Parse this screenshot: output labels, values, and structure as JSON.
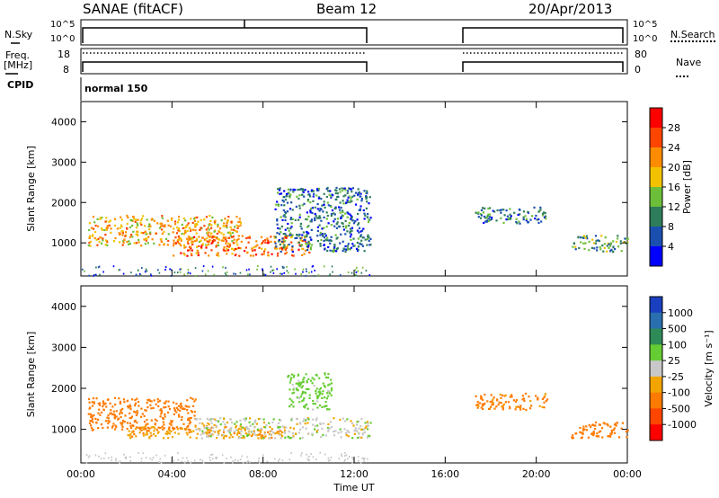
{
  "header": {
    "site": "SANAE (fitACF)",
    "beam": "Beam 12",
    "date": "20/Apr/2013"
  },
  "strip": {
    "nsky_label": "N.Sky",
    "nsearch_label": "N.Search",
    "nsky_ticks": [
      "10^5",
      "10^0"
    ],
    "freq_label_1": "Freq.",
    "freq_label_2": "[MHz]",
    "freq_ticks": [
      "18",
      "8"
    ],
    "nave_label": "Nave",
    "nave_ticks": [
      "80",
      "0"
    ],
    "cpid_label": "CPID",
    "cpid_value": "normal 150"
  },
  "chart_data": [
    {
      "type": "heatmap",
      "title": "",
      "xlabel": "Time UT",
      "ylabel": "Slant Range [km]",
      "xlim": [
        "00:00",
        "24:00"
      ],
      "x_ticks": [
        "00:00",
        "04:00",
        "08:00",
        "12:00",
        "16:00",
        "20:00",
        "00:00"
      ],
      "ylim": [
        180,
        4500
      ],
      "y_ticks": [
        1000,
        2000,
        3000,
        4000
      ],
      "colorbar": {
        "label": "Power [dB]",
        "ticks": [
          "4",
          "8",
          "12",
          "16",
          "20",
          "24",
          "28"
        ],
        "colors": [
          "#0000ff",
          "#1a4fb0",
          "#2e7d5a",
          "#6dbf3a",
          "#f2c200",
          "#ff8c00",
          "#ff4500",
          "#ff0000"
        ]
      },
      "echo_regions": [
        {
          "start_hour": 0.3,
          "end_hour": 7.0,
          "range_low_km": 950,
          "range_high_km": 1700,
          "level_db": 20
        },
        {
          "start_hour": 4.0,
          "end_hour": 10.0,
          "range_low_km": 700,
          "range_high_km": 1200,
          "level_db": 24
        },
        {
          "start_hour": 8.5,
          "end_hour": 12.7,
          "range_low_km": 800,
          "range_high_km": 2400,
          "level_db": 8
        },
        {
          "start_hour": 17.3,
          "end_hour": 20.5,
          "range_low_km": 1500,
          "range_high_km": 1900,
          "level_db": 8
        },
        {
          "start_hour": 21.5,
          "end_hour": 24.0,
          "range_low_km": 800,
          "range_high_km": 1200,
          "level_db": 12
        }
      ]
    },
    {
      "type": "heatmap",
      "title": "",
      "xlabel": "Time UT",
      "ylabel": "Slant Range [km]",
      "xlim": [
        "00:00",
        "24:00"
      ],
      "x_ticks": [
        "00:00",
        "04:00",
        "08:00",
        "12:00",
        "16:00",
        "20:00",
        "00:00"
      ],
      "ylim": [
        180,
        4500
      ],
      "y_ticks": [
        1000,
        2000,
        3000,
        4000
      ],
      "colorbar": {
        "label": "Velocity [m s⁻¹]",
        "ticks": [
          "1000",
          "500",
          "100",
          "25",
          "-25",
          "-100",
          "-500",
          "-1000"
        ],
        "colors": [
          "#1a3fbf",
          "#2a6fb0",
          "#2e8b57",
          "#66cc33",
          "#c8c8c8",
          "#f2a400",
          "#ff7a00",
          "#ff4500",
          "#ff0000"
        ]
      },
      "echo_regions": [
        {
          "start_hour": 0.3,
          "end_hour": 5.0,
          "range_low_km": 1000,
          "range_high_km": 1800,
          "velocity": -300
        },
        {
          "start_hour": 2.0,
          "end_hour": 9.0,
          "range_low_km": 800,
          "range_high_km": 1100,
          "velocity": -80
        },
        {
          "start_hour": 5.0,
          "end_hour": 12.7,
          "range_low_km": 800,
          "range_high_km": 1300,
          "velocity": 0
        },
        {
          "start_hour": 9.0,
          "end_hour": 11.0,
          "range_low_km": 1500,
          "range_high_km": 2400,
          "velocity": 60
        },
        {
          "start_hour": 17.3,
          "end_hour": 20.5,
          "range_low_km": 1500,
          "range_high_km": 1900,
          "velocity": -150
        },
        {
          "start_hour": 21.5,
          "end_hour": 24.0,
          "range_low_km": 800,
          "range_high_km": 1200,
          "velocity": -200
        }
      ]
    }
  ]
}
